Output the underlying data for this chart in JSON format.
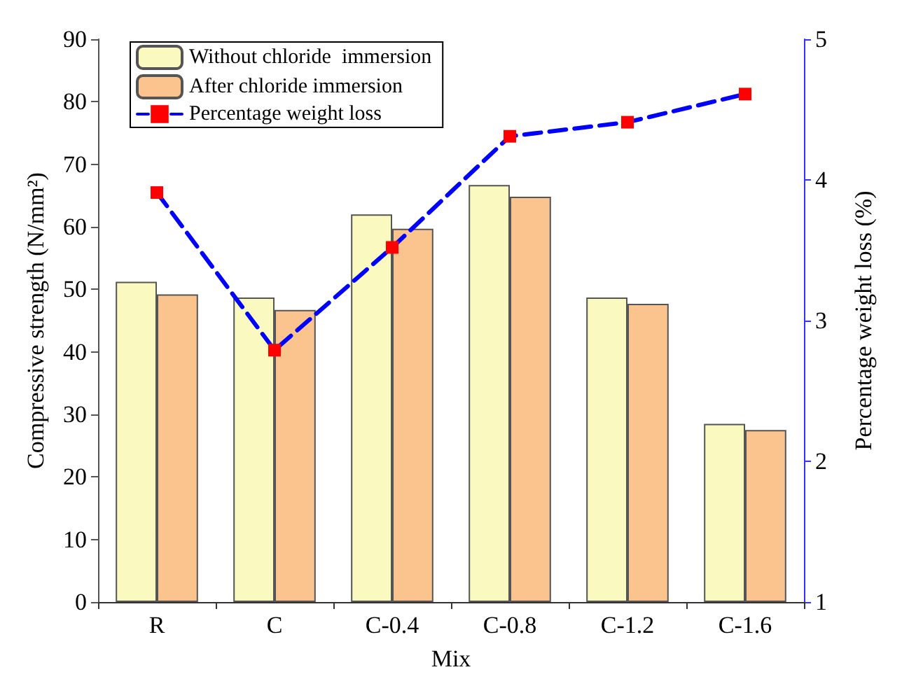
{
  "chart_data": {
    "type": "bar",
    "xlabel": "Mix",
    "ylabel": "Compressive strength (N/mm²)",
    "y2label": "Percentage weight loss (%)",
    "categories": [
      "R",
      "C",
      "C-0.4",
      "C-0.8",
      "C-1.2",
      "C-1.6"
    ],
    "series": [
      {
        "name": "Without chloride  immersion",
        "color": "#fafac0",
        "values": [
          51.2,
          48.7,
          62,
          66.7,
          48.7,
          28.5
        ]
      },
      {
        "name": "After chloride immersion",
        "color": "#fbc48e",
        "values": [
          49.2,
          46.7,
          59.7,
          64.8,
          47.7,
          27.5
        ]
      },
      {
        "name": "Percentage weight loss",
        "type": "line",
        "axis": "y2",
        "color": "#0000ff",
        "marker": "square",
        "line_style": "dashed",
        "values": [
          3.91,
          2.79,
          3.52,
          4.31,
          4.41,
          4.61
        ]
      }
    ],
    "ylim": [
      0,
      90
    ],
    "yticks": [
      0,
      10,
      20,
      30,
      40,
      50,
      60,
      70,
      80,
      90
    ],
    "y2lim": [
      1,
      5
    ],
    "y2ticks": [
      1,
      2,
      3,
      4,
      5
    ],
    "grid": false,
    "legend": "top left"
  }
}
